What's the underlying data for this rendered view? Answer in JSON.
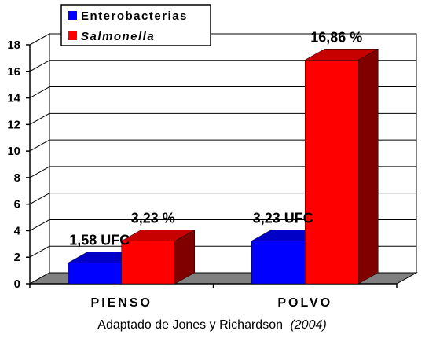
{
  "chart_data": {
    "type": "bar",
    "categories": [
      "PIENSO",
      "POLVO"
    ],
    "series": [
      {
        "name": "Enterobacterias",
        "values": [
          1.58,
          3.23
        ],
        "color": "#0000ff",
        "italic": false
      },
      {
        "name": "Salmonella",
        "values": [
          3.23,
          16.86
        ],
        "color": "#ff0000",
        "italic": true
      }
    ],
    "data_labels": [
      [
        "1,58 UFC",
        "3,23 UFC"
      ],
      [
        "3,23 %",
        "16,86 %"
      ]
    ],
    "y_ticks": [
      "0",
      "2",
      "4",
      "6",
      "8",
      "10",
      "12",
      "14",
      "16",
      "18"
    ],
    "ylim": [
      0,
      18
    ],
    "grid": true,
    "legend_position": "top-left",
    "three_d": true
  },
  "caption": {
    "main": "Adaptado de Jones y Richardson",
    "year": "(2004)"
  }
}
